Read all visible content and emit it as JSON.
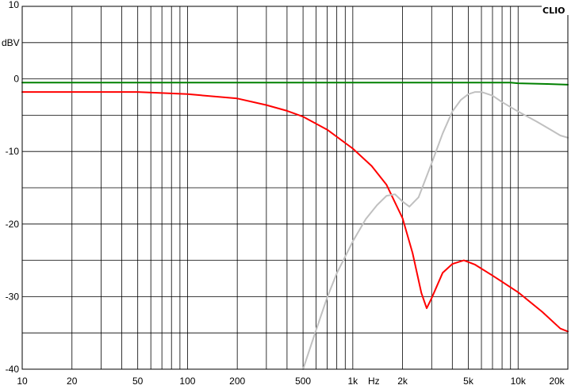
{
  "chart_data": {
    "type": "line",
    "brand": "CLIO",
    "y_unit_label": "dBV",
    "x_unit_label": "Hz",
    "x_scale": "log",
    "xlim": [
      10,
      20000
    ],
    "ylim": [
      -40,
      10
    ],
    "grid": true,
    "x_ticks": [
      {
        "value": 10,
        "label": "10"
      },
      {
        "value": 20,
        "label": "20"
      },
      {
        "value": 50,
        "label": "50"
      },
      {
        "value": 100,
        "label": "100"
      },
      {
        "value": 200,
        "label": "200"
      },
      {
        "value": 500,
        "label": "500"
      },
      {
        "value": 1000,
        "label": "1k"
      },
      {
        "value": 2000,
        "label": "2k"
      },
      {
        "value": 5000,
        "label": "5k"
      },
      {
        "value": 10000,
        "label": "10k"
      },
      {
        "value": 20000,
        "label": "20k"
      }
    ],
    "y_ticks": [
      {
        "value": 10,
        "label": "10"
      },
      {
        "value": 0,
        "label": "0"
      },
      {
        "value": -10,
        "label": "-10"
      },
      {
        "value": -20,
        "label": "-20"
      },
      {
        "value": -30,
        "label": "-30"
      },
      {
        "value": -40,
        "label": "-40"
      }
    ],
    "series": [
      {
        "color": "#008000",
        "x": [
          10,
          100,
          1000,
          5000,
          9000,
          10000,
          15000,
          20000
        ],
        "y": [
          -0.5,
          -0.5,
          -0.5,
          -0.5,
          -0.5,
          -0.6,
          -0.7,
          -0.8
        ]
      },
      {
        "color": "#ff0000",
        "x": [
          10,
          50,
          100,
          200,
          300,
          400,
          500,
          700,
          1000,
          1300,
          1600,
          2000,
          2300,
          2600,
          2800,
          3000,
          3500,
          4000,
          4700,
          5500,
          7000,
          10000,
          14000,
          18000,
          20000
        ],
        "y": [
          -1.8,
          -1.8,
          -2.1,
          -2.7,
          -3.6,
          -4.4,
          -5.2,
          -7,
          -9.6,
          -12,
          -14.6,
          -19.2,
          -24,
          -29.5,
          -31.6,
          -30.2,
          -26.7,
          -25.5,
          -25,
          -25.6,
          -27.1,
          -29.4,
          -32.1,
          -34.4,
          -34.8
        ]
      },
      {
        "color": "#c0c0c0",
        "x": [
          500,
          600,
          700,
          800,
          1000,
          1200,
          1400,
          1600,
          1800,
          2000,
          2200,
          2500,
          3000,
          3500,
          4000,
          4500,
          5000,
          5500,
          6000,
          7000,
          8000,
          10000,
          13000,
          16000,
          18000,
          20000
        ],
        "y": [
          -40,
          -34.6,
          -30.1,
          -26.8,
          -22.4,
          -19.3,
          -17.4,
          -16.1,
          -15.9,
          -16.9,
          -17.6,
          -16.3,
          -11.6,
          -7.5,
          -4.5,
          -2.9,
          -2.1,
          -1.8,
          -1.8,
          -2.3,
          -3.2,
          -4.5,
          -5.9,
          -7.1,
          -7.8,
          -8.1
        ]
      }
    ]
  }
}
